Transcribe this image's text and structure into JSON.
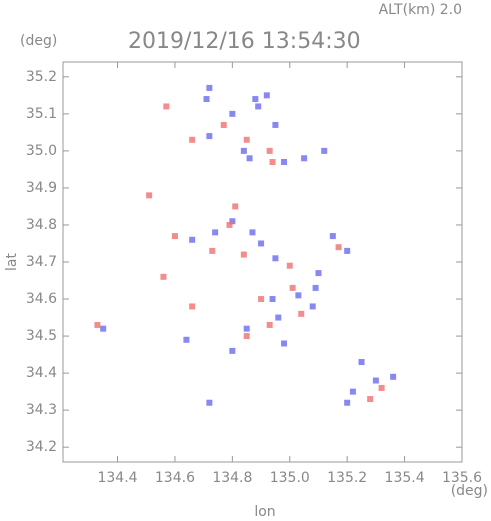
{
  "chart_data": {
    "type": "scatter",
    "title": "2019/12/16 13:54:30",
    "subtitle": "ALT(km) 2.0",
    "x_label": "lon",
    "x_unit": "(deg)",
    "y_label": "lat",
    "y_unit": "(deg)",
    "xlim": [
      134.21,
      135.6
    ],
    "xticks": [
      134.4,
      134.6,
      134.8,
      {
        "value": 135.0,
        "label": "135.0"
      },
      135.2,
      135.4,
      135.6
    ],
    "ylim": [
      34.16,
      35.24
    ],
    "yticks": [
      {
        "value": 34.2,
        "label": "34.2"
      },
      34.3,
      34.4,
      {
        "value": 34.5,
        "label": "34.5"
      },
      34.6,
      34.7,
      34.8,
      34.9,
      {
        "value": 35.0,
        "label": "35.0"
      },
      35.1,
      {
        "value": 35.2,
        "label": "35.2"
      }
    ],
    "series": [
      {
        "color": "#6a6af0",
        "x": [
          134.72,
          134.71,
          134.88,
          134.92,
          134.89,
          134.8,
          134.95,
          134.72,
          134.84,
          134.86,
          135.05,
          135.12,
          134.98,
          134.74,
          134.8,
          134.87,
          134.9,
          134.66,
          135.15,
          135.2,
          134.95,
          135.1,
          134.94,
          135.03,
          135.08,
          134.85,
          134.96,
          134.8,
          134.64,
          135.25,
          135.22,
          135.3,
          135.36,
          135.2,
          134.72,
          134.35,
          135.09,
          134.98
        ],
        "y": [
          35.17,
          35.14,
          35.14,
          35.15,
          35.12,
          35.1,
          35.07,
          35.04,
          35.0,
          34.98,
          34.98,
          35.0,
          34.97,
          34.78,
          34.81,
          34.78,
          34.75,
          34.76,
          34.77,
          34.73,
          34.71,
          34.67,
          34.6,
          34.61,
          34.58,
          34.52,
          34.55,
          34.46,
          34.49,
          34.43,
          34.35,
          34.38,
          34.39,
          34.32,
          34.32,
          34.52,
          34.63,
          34.48
        ]
      },
      {
        "color": "#f07070",
        "x": [
          134.51,
          134.66,
          134.85,
          134.77,
          134.93,
          134.57,
          134.81,
          134.79,
          134.6,
          134.73,
          134.84,
          135.0,
          134.9,
          135.01,
          134.56,
          134.85,
          134.93,
          135.04,
          134.33,
          135.28,
          135.32,
          135.17,
          134.94,
          134.66
        ],
        "y": [
          34.88,
          35.03,
          35.03,
          35.07,
          35.0,
          35.12,
          34.85,
          34.8,
          34.77,
          34.73,
          34.72,
          34.69,
          34.6,
          34.63,
          34.66,
          34.5,
          34.53,
          34.56,
          34.53,
          34.33,
          34.36,
          34.74,
          34.97,
          34.58
        ]
      }
    ]
  }
}
